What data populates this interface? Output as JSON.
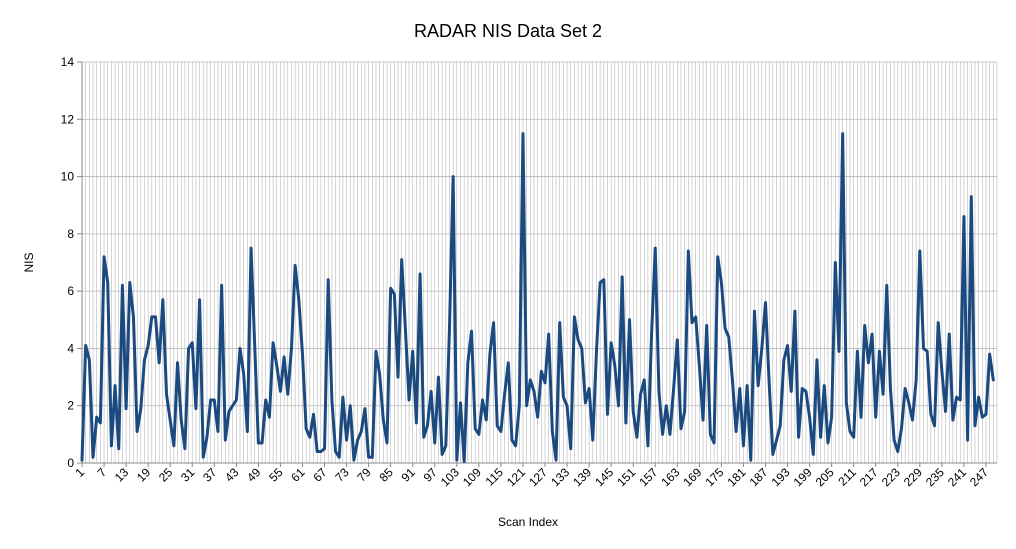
{
  "chart_data": {
    "type": "line",
    "title": "RADAR NIS Data Set 2",
    "xlabel": "Scan Index",
    "ylabel": "NIS",
    "ylim": [
      0,
      14
    ],
    "yticks": [
      0,
      2,
      4,
      6,
      8,
      10,
      12,
      14
    ],
    "xlim": [
      1,
      250
    ],
    "xtick_start": 1,
    "xtick_step": 6,
    "grid": true,
    "legend": "none",
    "colors": {
      "line": "#1a4a80",
      "grid": "#b8b8b8",
      "axis": "#888888"
    },
    "series": [
      {
        "values": [
          0.1,
          4.1,
          3.6,
          0.2,
          1.6,
          1.4,
          7.2,
          6.3,
          0.6,
          2.7,
          0.5,
          6.2,
          1.9,
          6.3,
          5.1,
          1.1,
          1.9,
          3.6,
          4.1,
          5.1,
          5.1,
          3.5,
          5.7,
          2.4,
          1.5,
          0.6,
          3.5,
          1.5,
          0.5,
          4.0,
          4.2,
          1.9,
          5.7,
          0.2,
          0.9,
          2.2,
          2.2,
          1.1,
          6.2,
          0.8,
          1.8,
          2.0,
          2.2,
          4.0,
          3.1,
          1.1,
          7.5,
          4.1,
          0.7,
          0.7,
          2.2,
          1.6,
          4.2,
          3.4,
          2.5,
          3.7,
          2.4,
          4.0,
          6.9,
          5.7,
          3.8,
          1.2,
          0.9,
          1.7,
          0.4,
          0.4,
          0.5,
          6.4,
          2.2,
          0.4,
          0.2,
          2.3,
          0.8,
          2.0,
          0.1,
          0.8,
          1.1,
          1.9,
          0.2,
          0.2,
          3.9,
          3.1,
          1.5,
          0.7,
          6.1,
          5.9,
          3.0,
          7.1,
          4.7,
          2.2,
          3.9,
          1.4,
          6.6,
          0.9,
          1.3,
          2.5,
          0.7,
          3.0,
          0.3,
          0.6,
          4.7,
          10.0,
          0.1,
          2.1,
          0.05,
          3.5,
          4.6,
          1.2,
          1.0,
          2.2,
          1.5,
          3.8,
          4.9,
          1.3,
          1.1,
          2.4,
          3.5,
          0.8,
          0.6,
          2.0,
          11.5,
          2.0,
          2.9,
          2.5,
          1.6,
          3.2,
          2.8,
          4.5,
          1.1,
          0.1,
          4.9,
          2.3,
          2.0,
          0.5,
          5.1,
          4.3,
          4.0,
          2.1,
          2.6,
          0.8,
          3.9,
          6.3,
          6.4,
          1.7,
          4.2,
          3.4,
          2.0,
          6.5,
          1.4,
          5.0,
          1.8,
          0.9,
          2.4,
          2.9,
          0.6,
          4.5,
          7.5,
          2.5,
          1.0,
          2.0,
          1.0,
          2.6,
          4.3,
          1.2,
          1.8,
          7.4,
          4.9,
          5.1,
          3.4,
          1.5,
          4.8,
          1.0,
          0.7,
          7.2,
          6.3,
          4.7,
          4.4,
          2.9,
          1.1,
          2.6,
          0.6,
          2.7,
          0.1,
          5.3,
          2.7,
          4.0,
          5.6,
          2.8,
          0.3,
          0.8,
          1.3,
          3.6,
          4.1,
          2.5,
          5.3,
          0.9,
          2.6,
          2.5,
          1.6,
          0.3,
          3.6,
          0.9,
          2.7,
          0.7,
          1.6,
          7.0,
          3.9,
          11.5,
          2.1,
          1.1,
          0.9,
          3.9,
          1.6,
          4.8,
          3.5,
          4.5,
          1.6,
          3.9,
          2.4,
          6.2,
          2.6,
          0.8,
          0.4,
          1.2,
          2.6,
          2.1,
          1.5,
          2.9,
          7.4,
          4.0,
          3.9,
          1.7,
          1.3,
          4.9,
          3.2,
          1.8,
          4.5,
          1.5,
          2.3,
          2.2,
          8.6,
          0.8,
          9.3,
          1.3,
          2.3,
          1.6,
          1.7,
          3.8,
          2.9
        ]
      }
    ]
  }
}
